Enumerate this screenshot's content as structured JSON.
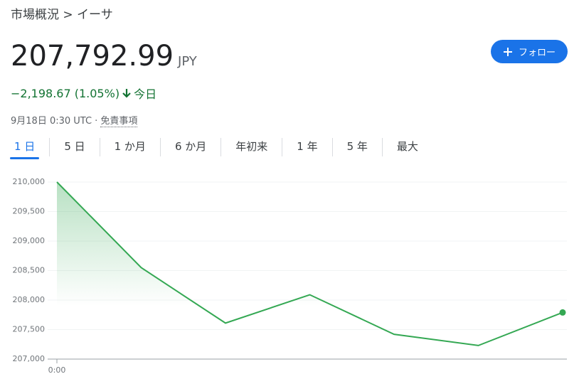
{
  "header": {
    "breadcrumb": "市場概況 > イーサ",
    "price": "207,792.99",
    "currency": "JPY",
    "change": "−2,198.67 (1.05%)",
    "period": "今日",
    "timestamp": "9月18日 0:30 UTC ·",
    "disclaimer": "免責事項",
    "follow_button": "フォロー"
  },
  "tabs": [
    "1 日",
    "5 日",
    "1 か月",
    "6 か月",
    "年初来",
    "1 年",
    "5 年",
    "最大"
  ],
  "chart_data": {
    "type": "line",
    "categories": [
      "0:00",
      null,
      null,
      null,
      null,
      null,
      null
    ],
    "series": [
      {
        "color": "#34a853",
        "values": [
          210000,
          208550,
          207610,
          208090,
          207420,
          207230,
          207790
        ]
      }
    ],
    "ylim": [
      207000,
      210000
    ],
    "yticks": [
      {
        "value": 207000,
        "label": "207,000"
      },
      {
        "value": 207500,
        "label": "207,500"
      },
      {
        "value": 208000,
        "label": "208,000"
      },
      {
        "value": 208500,
        "label": "208,500"
      },
      {
        "value": 209000,
        "label": "209,000"
      },
      {
        "value": 209500,
        "label": "209,500"
      },
      {
        "value": 210000,
        "label": "210,000"
      }
    ],
    "grid": true
  }
}
